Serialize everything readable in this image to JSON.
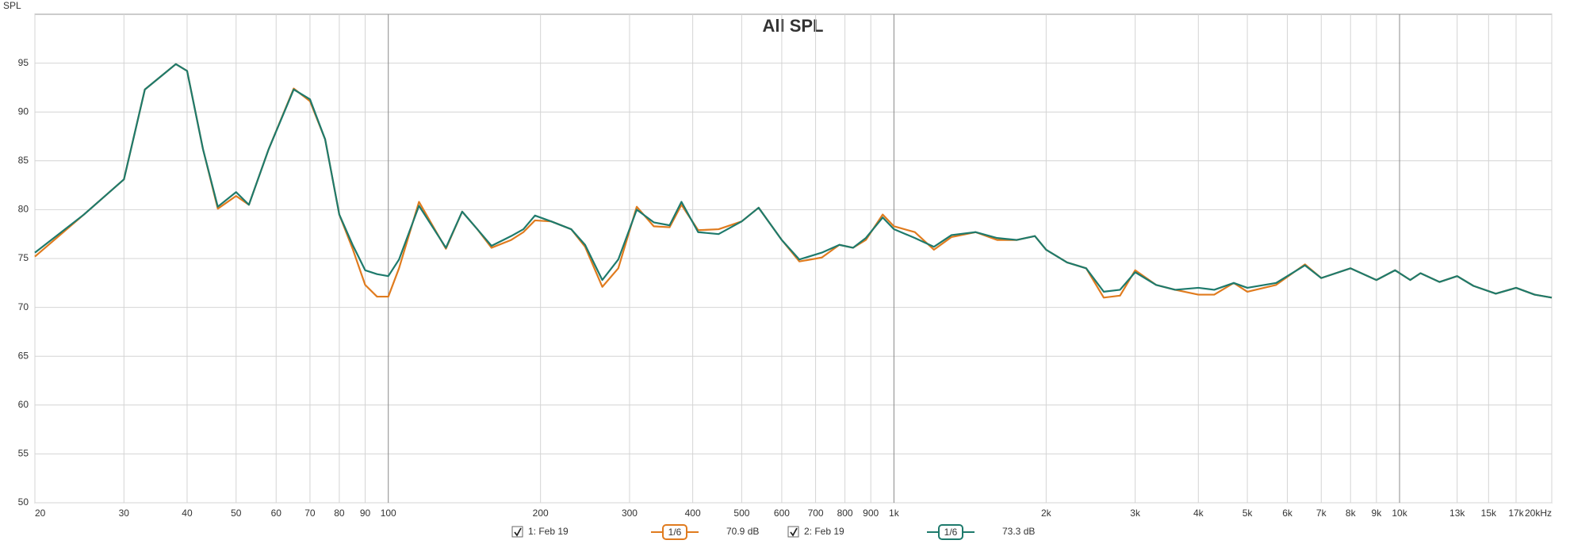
{
  "chart_data": {
    "type": "line",
    "title": "All SPL",
    "y_label": "SPL",
    "xscale": "log",
    "grid": true,
    "xlim": [
      20,
      20000
    ],
    "ylim": [
      50,
      100
    ],
    "xticks": [
      20,
      30,
      40,
      50,
      60,
      70,
      80,
      90,
      100,
      200,
      300,
      400,
      500,
      600,
      700,
      800,
      900,
      {
        "value": 1000,
        "label": "1k"
      },
      {
        "value": 2000,
        "label": "2k"
      },
      {
        "value": 3000,
        "label": "3k"
      },
      {
        "value": 4000,
        "label": "4k"
      },
      {
        "value": 5000,
        "label": "5k"
      },
      {
        "value": 6000,
        "label": "6k"
      },
      {
        "value": 7000,
        "label": "7k"
      },
      {
        "value": 8000,
        "label": "8k"
      },
      {
        "value": 9000,
        "label": "9k"
      },
      {
        "value": 10000,
        "label": "10k"
      },
      {
        "value": 13000,
        "label": "13k"
      },
      {
        "value": 15000,
        "label": "15k"
      },
      {
        "value": 17000,
        "label": "17k"
      },
      {
        "value": 20000,
        "label": "20kHz"
      }
    ],
    "yticks": [
      50,
      55,
      60,
      65,
      70,
      75,
      80,
      85,
      90,
      95
    ],
    "x": [
      20,
      25,
      30,
      33,
      36,
      38,
      40,
      43,
      46,
      50,
      53,
      58,
      65,
      70,
      75,
      80,
      85,
      90,
      95,
      100,
      105,
      115,
      130,
      140,
      150,
      160,
      175,
      185,
      195,
      210,
      230,
      245,
      265,
      285,
      310,
      335,
      360,
      380,
      410,
      450,
      500,
      540,
      600,
      650,
      720,
      780,
      830,
      880,
      950,
      1000,
      1100,
      1200,
      1300,
      1450,
      1600,
      1750,
      1900,
      2000,
      2200,
      2400,
      2600,
      2800,
      3000,
      3300,
      3600,
      4000,
      4300,
      4700,
      5000,
      5700,
      6500,
      7000,
      8000,
      9000,
      9800,
      10500,
      11000,
      12000,
      13000,
      14000,
      15500,
      17000,
      18500,
      20000
    ],
    "series": [
      {
        "name": "1: Feb 19",
        "color": "#e07b1e",
        "smoothing": "1/6",
        "level": "70.9 dB",
        "values": [
          75.2,
          79.5,
          83.1,
          92.3,
          93.9,
          94.9,
          94.2,
          86.2,
          80.1,
          81.4,
          80.5,
          86.2,
          92.4,
          91.1,
          87.2,
          79.5,
          76.0,
          72.3,
          71.1,
          71.1,
          74.0,
          80.8,
          76.0,
          79.8,
          78.0,
          76.1,
          76.9,
          77.7,
          78.9,
          78.8,
          78.0,
          76.2,
          72.1,
          74.0,
          80.3,
          78.3,
          78.2,
          80.5,
          77.9,
          78.0,
          78.8,
          80.2,
          76.9,
          74.7,
          75.1,
          76.4,
          76.1,
          76.9,
          79.5,
          78.3,
          77.7,
          75.9,
          77.2,
          77.7,
          76.9,
          76.9,
          77.3,
          75.9,
          74.6,
          74.0,
          71.0,
          71.2,
          73.8,
          72.3,
          71.8,
          71.3,
          71.3,
          72.5,
          71.6,
          72.3,
          74.4,
          73.0,
          74.0,
          72.8,
          73.8,
          72.8,
          73.5,
          72.6,
          73.2,
          72.2,
          71.4,
          72.0,
          71.3,
          71.0
        ]
      },
      {
        "name": "2: Feb 19",
        "color": "#1e7a6c",
        "smoothing": "1/6",
        "level": "73.3 dB",
        "values": [
          75.6,
          79.5,
          83.1,
          92.3,
          93.9,
          94.9,
          94.2,
          86.2,
          80.3,
          81.8,
          80.5,
          86.2,
          92.3,
          91.3,
          87.2,
          79.5,
          76.4,
          73.8,
          73.4,
          73.2,
          74.9,
          80.4,
          76.1,
          79.8,
          78.0,
          76.3,
          77.3,
          78.0,
          79.4,
          78.8,
          78.0,
          76.4,
          72.8,
          74.9,
          80.0,
          78.7,
          78.4,
          80.8,
          77.7,
          77.5,
          78.8,
          80.2,
          76.9,
          74.9,
          75.6,
          76.4,
          76.1,
          77.1,
          79.2,
          78.0,
          77.1,
          76.2,
          77.4,
          77.7,
          77.1,
          76.9,
          77.3,
          75.9,
          74.6,
          74.0,
          71.6,
          71.8,
          73.6,
          72.3,
          71.8,
          72.0,
          71.8,
          72.5,
          72.0,
          72.5,
          74.3,
          73.0,
          74.0,
          72.8,
          73.8,
          72.8,
          73.5,
          72.6,
          73.2,
          72.2,
          71.4,
          72.0,
          71.3,
          71.0
        ]
      }
    ]
  }
}
